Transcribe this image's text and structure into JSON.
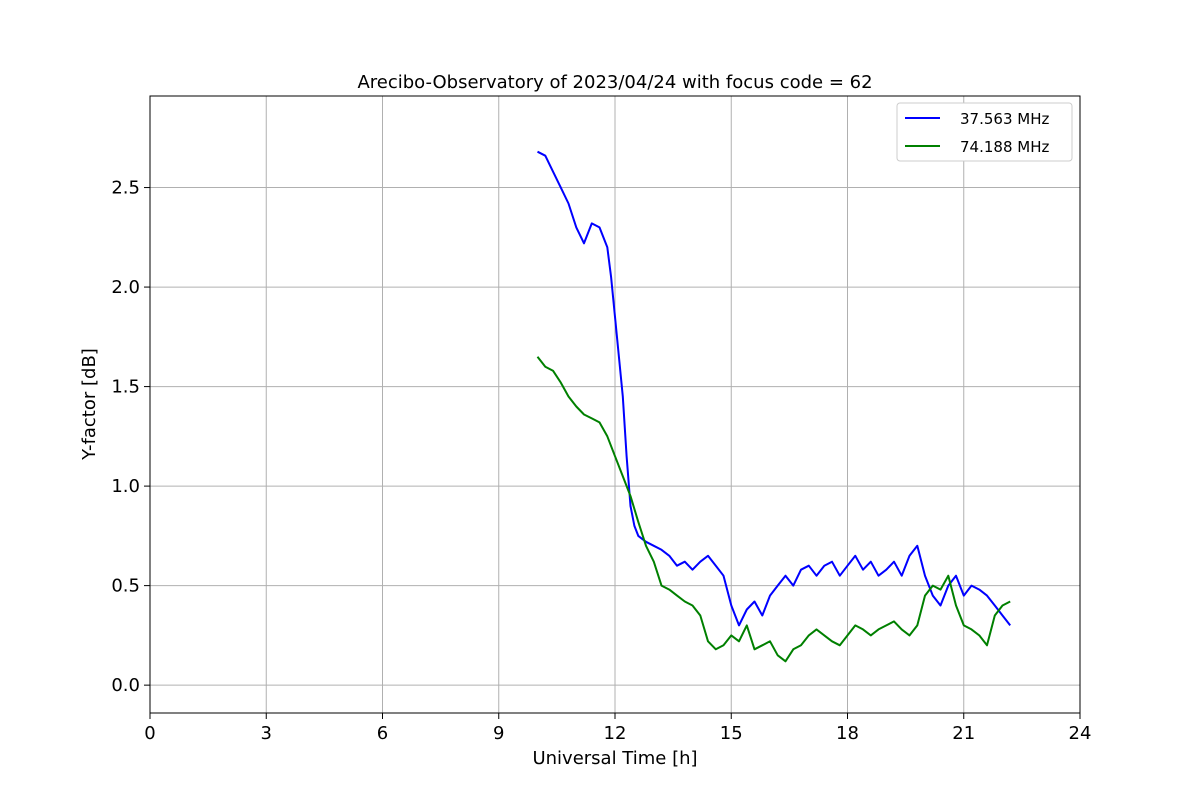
{
  "chart_data": {
    "type": "line",
    "title": "Arecibo-Observatory of 2023/04/24 with focus code = 62",
    "xlabel": "Universal Time [h]",
    "ylabel": "Y-factor [dB]",
    "xlim": [
      0,
      24
    ],
    "ylim": [
      -0.14,
      2.96
    ],
    "xticks": [
      0,
      3,
      6,
      9,
      12,
      15,
      18,
      21,
      24
    ],
    "yticks": [
      0.0,
      0.5,
      1.0,
      1.5,
      2.0,
      2.5
    ],
    "xtick_labels": [
      "0",
      "3",
      "6",
      "9",
      "12",
      "15",
      "18",
      "21",
      "24"
    ],
    "ytick_labels": [
      "0.0",
      "0.5",
      "1.0",
      "1.5",
      "2.0",
      "2.5"
    ],
    "grid": true,
    "legend_position": "top-right",
    "series": [
      {
        "name": "37.563 MHz",
        "color": "#0000ff",
        "x": [
          10.0,
          10.2,
          10.4,
          10.6,
          10.8,
          11.0,
          11.2,
          11.4,
          11.6,
          11.8,
          11.9,
          12.0,
          12.1,
          12.2,
          12.3,
          12.4,
          12.5,
          12.6,
          12.8,
          13.0,
          13.2,
          13.4,
          13.6,
          13.8,
          14.0,
          14.2,
          14.4,
          14.6,
          14.8,
          15.0,
          15.2,
          15.4,
          15.6,
          15.8,
          16.0,
          16.2,
          16.4,
          16.6,
          16.8,
          17.0,
          17.2,
          17.4,
          17.6,
          17.8,
          18.0,
          18.2,
          18.4,
          18.6,
          18.8,
          19.0,
          19.2,
          19.4,
          19.6,
          19.8,
          20.0,
          20.2,
          20.4,
          20.6,
          20.8,
          21.0,
          21.2,
          21.4,
          21.6,
          21.8,
          22.0,
          22.2
        ],
        "y": [
          2.68,
          2.66,
          2.58,
          2.5,
          2.42,
          2.3,
          2.22,
          2.32,
          2.3,
          2.2,
          2.05,
          1.85,
          1.65,
          1.45,
          1.15,
          0.9,
          0.8,
          0.75,
          0.72,
          0.7,
          0.68,
          0.65,
          0.6,
          0.62,
          0.58,
          0.62,
          0.65,
          0.6,
          0.55,
          0.4,
          0.3,
          0.38,
          0.42,
          0.35,
          0.45,
          0.5,
          0.55,
          0.5,
          0.58,
          0.6,
          0.55,
          0.6,
          0.62,
          0.55,
          0.6,
          0.65,
          0.58,
          0.62,
          0.55,
          0.58,
          0.62,
          0.55,
          0.65,
          0.7,
          0.55,
          0.45,
          0.4,
          0.5,
          0.55,
          0.45,
          0.5,
          0.48,
          0.45,
          0.4,
          0.35,
          0.3
        ]
      },
      {
        "name": "74.188 MHz",
        "color": "#008000",
        "x": [
          10.0,
          10.2,
          10.4,
          10.6,
          10.8,
          11.0,
          11.2,
          11.4,
          11.6,
          11.8,
          12.0,
          12.2,
          12.4,
          12.6,
          12.8,
          13.0,
          13.2,
          13.4,
          13.6,
          13.8,
          14.0,
          14.2,
          14.4,
          14.6,
          14.8,
          15.0,
          15.2,
          15.4,
          15.6,
          15.8,
          16.0,
          16.2,
          16.4,
          16.6,
          16.8,
          17.0,
          17.2,
          17.4,
          17.6,
          17.8,
          18.0,
          18.2,
          18.4,
          18.6,
          18.8,
          19.0,
          19.2,
          19.4,
          19.6,
          19.8,
          20.0,
          20.2,
          20.4,
          20.6,
          20.8,
          21.0,
          21.2,
          21.4,
          21.6,
          21.8,
          22.0,
          22.2
        ],
        "y": [
          1.65,
          1.6,
          1.58,
          1.52,
          1.45,
          1.4,
          1.36,
          1.34,
          1.32,
          1.25,
          1.15,
          1.05,
          0.95,
          0.82,
          0.7,
          0.62,
          0.5,
          0.48,
          0.45,
          0.42,
          0.4,
          0.35,
          0.22,
          0.18,
          0.2,
          0.25,
          0.22,
          0.3,
          0.18,
          0.2,
          0.22,
          0.15,
          0.12,
          0.18,
          0.2,
          0.25,
          0.28,
          0.25,
          0.22,
          0.2,
          0.25,
          0.3,
          0.28,
          0.25,
          0.28,
          0.3,
          0.32,
          0.28,
          0.25,
          0.3,
          0.45,
          0.5,
          0.48,
          0.55,
          0.4,
          0.3,
          0.28,
          0.25,
          0.2,
          0.35,
          0.4,
          0.42
        ]
      }
    ]
  }
}
